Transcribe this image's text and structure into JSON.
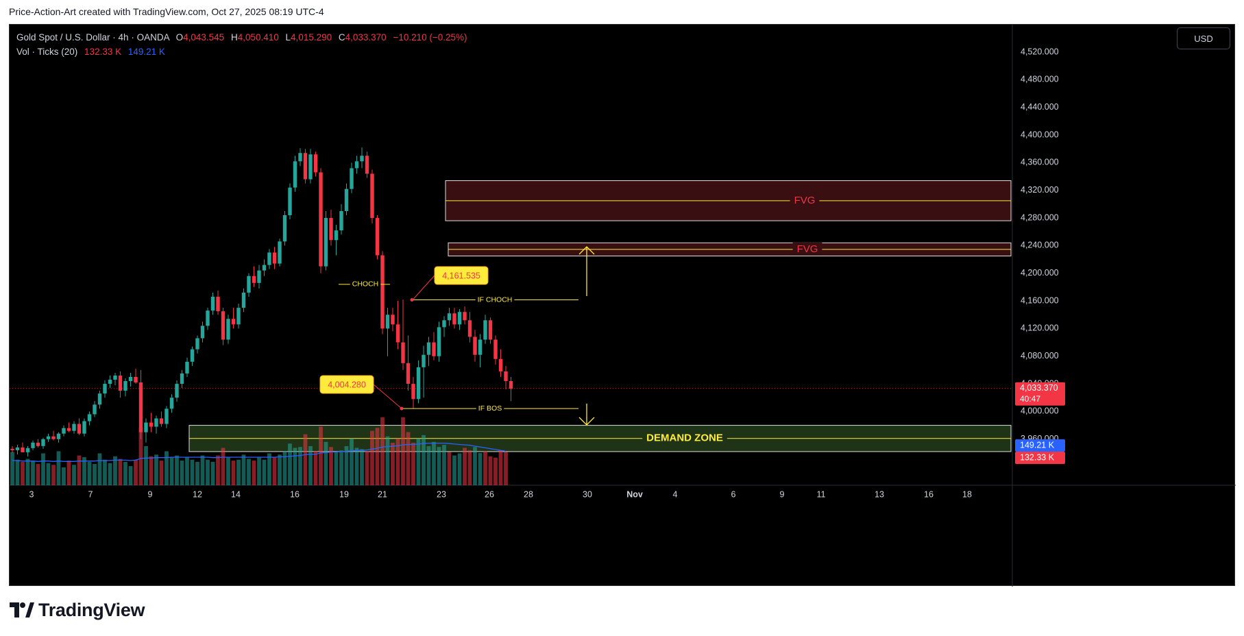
{
  "attribution": "Price-Action-Art created with TradingView.com, Oct 27, 2025 08:19 UTC-4",
  "brand": "TradingView",
  "legend": {
    "symbol": "Gold Spot / U.S. Dollar · 4h · OANDA",
    "open_label": "O",
    "open": "4,043.545",
    "high_label": "H",
    "high": "4,050.410",
    "low_label": "L",
    "low": "4,015.290",
    "close_label": "C",
    "close": "4,033.370",
    "change": "−10.210 (−0.25%)",
    "volume_label": "Vol · Ticks (20)",
    "volume": "132.33 K",
    "volume_ma": "149.21 K"
  },
  "currency": "USD",
  "price_axis": {
    "ticks": [
      "4,520.000",
      "4,480.000",
      "4,440.000",
      "4,400.000",
      "4,360.000",
      "4,320.000",
      "4,280.000",
      "4,240.000",
      "4,200.000",
      "4,160.000",
      "4,120.000",
      "4,080.000",
      "4,040.000",
      "4,000.000",
      "3,960.000"
    ],
    "current_price": "4,033.370",
    "countdown": "40:47",
    "volume_ma_badge": "149.21 K",
    "volume_badge": "132.33 K"
  },
  "time_axis": [
    "3",
    "7",
    "9",
    "12",
    "14",
    "16",
    "19",
    "21",
    "23",
    "26",
    "28",
    "30",
    "Nov",
    "4",
    "6",
    "9",
    "11",
    "13",
    "16",
    "18"
  ],
  "annotations": {
    "fvg_1": "FVG",
    "fvg_2": "FVG",
    "choch": "CHOCH",
    "if_choch": "IF CHOCH",
    "if_bos": "IF BOS",
    "demand_zone": "DEMAND ZONE",
    "high_callout": "4,161.535",
    "low_callout": "4,004.280"
  },
  "colors": {
    "up": "#26a69a",
    "down": "#f23645",
    "annotation": "#ffeb3b",
    "fvg_fill": "#3a0f12",
    "demand_fill": "#1f3316",
    "volume_ma": "#2962ff",
    "callout_bg": "#ffeb3b",
    "callout_text": "#f23645"
  },
  "chart_data": {
    "type": "candlestick",
    "symbol": "Gold Spot / U.S. Dollar",
    "interval": "4h",
    "ylim": [
      3930,
      4530
    ],
    "candles": [
      [
        3946,
        3950,
        3940,
        3944
      ],
      [
        3944,
        3952,
        3938,
        3948
      ],
      [
        3948,
        3955,
        3942,
        3941
      ],
      [
        3941,
        3950,
        3935,
        3947
      ],
      [
        3947,
        3958,
        3944,
        3955
      ],
      [
        3955,
        3960,
        3948,
        3950
      ],
      [
        3950,
        3962,
        3946,
        3960
      ],
      [
        3960,
        3968,
        3956,
        3964
      ],
      [
        3964,
        3972,
        3958,
        3960
      ],
      [
        3960,
        3970,
        3955,
        3968
      ],
      [
        3968,
        3980,
        3964,
        3976
      ],
      [
        3976,
        3984,
        3970,
        3972
      ],
      [
        3972,
        3986,
        3968,
        3982
      ],
      [
        3982,
        3990,
        3966,
        3968
      ],
      [
        3968,
        3990,
        3964,
        3986
      ],
      [
        3986,
        4000,
        3980,
        3996
      ],
      [
        3996,
        4015,
        3992,
        4010
      ],
      [
        4010,
        4030,
        4004,
        4026
      ],
      [
        4026,
        4045,
        4020,
        4040
      ],
      [
        4040,
        4052,
        4034,
        4046
      ],
      [
        4046,
        4056,
        4038,
        4052
      ],
      [
        4052,
        4058,
        4020,
        4030
      ],
      [
        4030,
        4048,
        4022,
        4044
      ],
      [
        4044,
        4056,
        4036,
        4050
      ],
      [
        4050,
        4062,
        4040,
        4042
      ],
      [
        4042,
        4060,
        3960,
        3970
      ],
      [
        3970,
        3990,
        3955,
        3984
      ],
      [
        3984,
        3998,
        3970,
        3978
      ],
      [
        3978,
        3994,
        3968,
        3990
      ],
      [
        3990,
        4000,
        3978,
        3982
      ],
      [
        3982,
        4008,
        3976,
        4004
      ],
      [
        4004,
        4025,
        3998,
        4020
      ],
      [
        4020,
        4045,
        4014,
        4040
      ],
      [
        4040,
        4060,
        4034,
        4055
      ],
      [
        4055,
        4078,
        4050,
        4072
      ],
      [
        4072,
        4094,
        4066,
        4090
      ],
      [
        4090,
        4110,
        4084,
        4106
      ],
      [
        4106,
        4130,
        4100,
        4124
      ],
      [
        4124,
        4150,
        4118,
        4146
      ],
      [
        4146,
        4172,
        4140,
        4166
      ],
      [
        4166,
        4175,
        4140,
        4145
      ],
      [
        4145,
        4150,
        4096,
        4104
      ],
      [
        4104,
        4140,
        4098,
        4134
      ],
      [
        4134,
        4150,
        4120,
        4126
      ],
      [
        4126,
        4156,
        4120,
        4150
      ],
      [
        4150,
        4178,
        4144,
        4172
      ],
      [
        4172,
        4200,
        4166,
        4196
      ],
      [
        4196,
        4210,
        4180,
        4186
      ],
      [
        4186,
        4212,
        4178,
        4204
      ],
      [
        4204,
        4220,
        4196,
        4212
      ],
      [
        4212,
        4235,
        4206,
        4230
      ],
      [
        4230,
        4238,
        4206,
        4214
      ],
      [
        4214,
        4250,
        4210,
        4246
      ],
      [
        4246,
        4290,
        4240,
        4284
      ],
      [
        4284,
        4330,
        4278,
        4324
      ],
      [
        4324,
        4370,
        4318,
        4362
      ],
      [
        4362,
        4381,
        4355,
        4374
      ],
      [
        4374,
        4380,
        4330,
        4336
      ],
      [
        4336,
        4380,
        4330,
        4372
      ],
      [
        4372,
        4376,
        4340,
        4346
      ],
      [
        4346,
        4352,
        4200,
        4210
      ],
      [
        4210,
        4290,
        4204,
        4280
      ],
      [
        4280,
        4292,
        4240,
        4248
      ],
      [
        4248,
        4270,
        4226,
        4262
      ],
      [
        4262,
        4300,
        4256,
        4290
      ],
      [
        4290,
        4330,
        4284,
        4322
      ],
      [
        4322,
        4360,
        4316,
        4352
      ],
      [
        4352,
        4370,
        4344,
        4362
      ],
      [
        4362,
        4382,
        4352,
        4370
      ],
      [
        4370,
        4376,
        4338,
        4344
      ],
      [
        4344,
        4350,
        4272,
        4280
      ],
      [
        4280,
        4284,
        4220,
        4226
      ],
      [
        4226,
        4232,
        4112,
        4120
      ],
      [
        4120,
        4150,
        4080,
        4140
      ],
      [
        4140,
        4150,
        4116,
        4126
      ],
      [
        4126,
        4160,
        4090,
        4100
      ],
      [
        4100,
        4162,
        4060,
        4070
      ],
      [
        4070,
        4110,
        4030,
        4040
      ],
      [
        4040,
        4050,
        4004,
        4018
      ],
      [
        4018,
        4074,
        4012,
        4064
      ],
      [
        4064,
        4095,
        4020,
        4082
      ],
      [
        4082,
        4108,
        4066,
        4100
      ],
      [
        4100,
        4115,
        4074,
        4080
      ],
      [
        4080,
        4130,
        4072,
        4122
      ],
      [
        4122,
        4138,
        4108,
        4132
      ],
      [
        4132,
        4150,
        4124,
        4142
      ],
      [
        4142,
        4150,
        4120,
        4126
      ],
      [
        4126,
        4148,
        4118,
        4144
      ],
      [
        4144,
        4152,
        4126,
        4132
      ],
      [
        4132,
        4144,
        4100,
        4108
      ],
      [
        4108,
        4118,
        4072,
        4082
      ],
      [
        4082,
        4112,
        4064,
        4104
      ],
      [
        4104,
        4140,
        4098,
        4132
      ],
      [
        4132,
        4136,
        4098,
        4104
      ],
      [
        4104,
        4110,
        4068,
        4076
      ],
      [
        4076,
        4090,
        4050,
        4058
      ],
      [
        4058,
        4066,
        4032,
        4044
      ],
      [
        4044,
        4050,
        4015,
        4033
      ]
    ],
    "volume": [
      [
        78,
        1
      ],
      [
        60,
        1
      ],
      [
        55,
        0
      ],
      [
        62,
        1
      ],
      [
        58,
        1
      ],
      [
        50,
        0
      ],
      [
        75,
        1
      ],
      [
        52,
        1
      ],
      [
        48,
        0
      ],
      [
        80,
        1
      ],
      [
        42,
        1
      ],
      [
        58,
        0
      ],
      [
        48,
        1
      ],
      [
        70,
        0
      ],
      [
        66,
        1
      ],
      [
        55,
        1
      ],
      [
        50,
        1
      ],
      [
        75,
        1
      ],
      [
        60,
        1
      ],
      [
        52,
        1
      ],
      [
        68,
        1
      ],
      [
        62,
        0
      ],
      [
        55,
        1
      ],
      [
        45,
        1
      ],
      [
        60,
        0
      ],
      [
        135,
        0
      ],
      [
        92,
        1
      ],
      [
        68,
        0
      ],
      [
        72,
        1
      ],
      [
        58,
        0
      ],
      [
        80,
        1
      ],
      [
        65,
        1
      ],
      [
        70,
        1
      ],
      [
        58,
        1
      ],
      [
        66,
        1
      ],
      [
        60,
        1
      ],
      [
        55,
        1
      ],
      [
        70,
        1
      ],
      [
        60,
        1
      ],
      [
        55,
        1
      ],
      [
        70,
        0
      ],
      [
        88,
        0
      ],
      [
        65,
        1
      ],
      [
        58,
        0
      ],
      [
        60,
        1
      ],
      [
        72,
        1
      ],
      [
        62,
        1
      ],
      [
        58,
        0
      ],
      [
        65,
        1
      ],
      [
        60,
        1
      ],
      [
        75,
        1
      ],
      [
        66,
        0
      ],
      [
        72,
        1
      ],
      [
        80,
        1
      ],
      [
        98,
        1
      ],
      [
        88,
        1
      ],
      [
        90,
        1
      ],
      [
        120,
        0
      ],
      [
        92,
        1
      ],
      [
        80,
        0
      ],
      [
        138,
        0
      ],
      [
        102,
        1
      ],
      [
        90,
        0
      ],
      [
        78,
        1
      ],
      [
        82,
        1
      ],
      [
        92,
        1
      ],
      [
        110,
        1
      ],
      [
        88,
        1
      ],
      [
        85,
        1
      ],
      [
        80,
        0
      ],
      [
        128,
        0
      ],
      [
        135,
        0
      ],
      [
        160,
        0
      ],
      [
        115,
        1
      ],
      [
        100,
        0
      ],
      [
        110,
        0
      ],
      [
        160,
        0
      ],
      [
        125,
        0
      ],
      [
        100,
        0
      ],
      [
        110,
        1
      ],
      [
        118,
        1
      ],
      [
        92,
        1
      ],
      [
        102,
        1
      ],
      [
        90,
        1
      ],
      [
        95,
        1
      ],
      [
        78,
        0
      ],
      [
        70,
        1
      ],
      [
        75,
        1
      ],
      [
        88,
        0
      ],
      [
        82,
        0
      ],
      [
        90,
        1
      ],
      [
        76,
        1
      ],
      [
        80,
        0
      ],
      [
        68,
        0
      ],
      [
        65,
        0
      ],
      [
        82,
        0
      ],
      [
        78,
        0
      ]
    ],
    "volume_ma": [
      58,
      58,
      57,
      57,
      57,
      56,
      57,
      57,
      56,
      57,
      56,
      56,
      56,
      57,
      57,
      57,
      57,
      58,
      58,
      58,
      59,
      59,
      59,
      58,
      59,
      63,
      64,
      64,
      65,
      65,
      65,
      66,
      66,
      66,
      66,
      66,
      66,
      66,
      66,
      65,
      65,
      66,
      66,
      66,
      66,
      66,
      66,
      66,
      66,
      66,
      66,
      66,
      67,
      67,
      68,
      69,
      70,
      72,
      73,
      73,
      76,
      77,
      78,
      78,
      79,
      80,
      81,
      82,
      82,
      83,
      85,
      87,
      90,
      91,
      92,
      93,
      95,
      96,
      96,
      97,
      98,
      99,
      99,
      99,
      99,
      98,
      97,
      96,
      95,
      94,
      92,
      90,
      88,
      86,
      84,
      82,
      80
    ],
    "zones": [
      {
        "label": "FVG",
        "from": 4276,
        "to": 4334
      },
      {
        "label": "FVG",
        "from": 4225,
        "to": 4244
      },
      {
        "label": "DEMAND ZONE",
        "from": 3942,
        "to": 3980
      }
    ],
    "levels": [
      {
        "label": "CHOCH",
        "price": 4184
      },
      {
        "label": "IF CHOCH",
        "price": 4161.535
      },
      {
        "label": "IF BOS",
        "price": 4004.28
      }
    ]
  }
}
